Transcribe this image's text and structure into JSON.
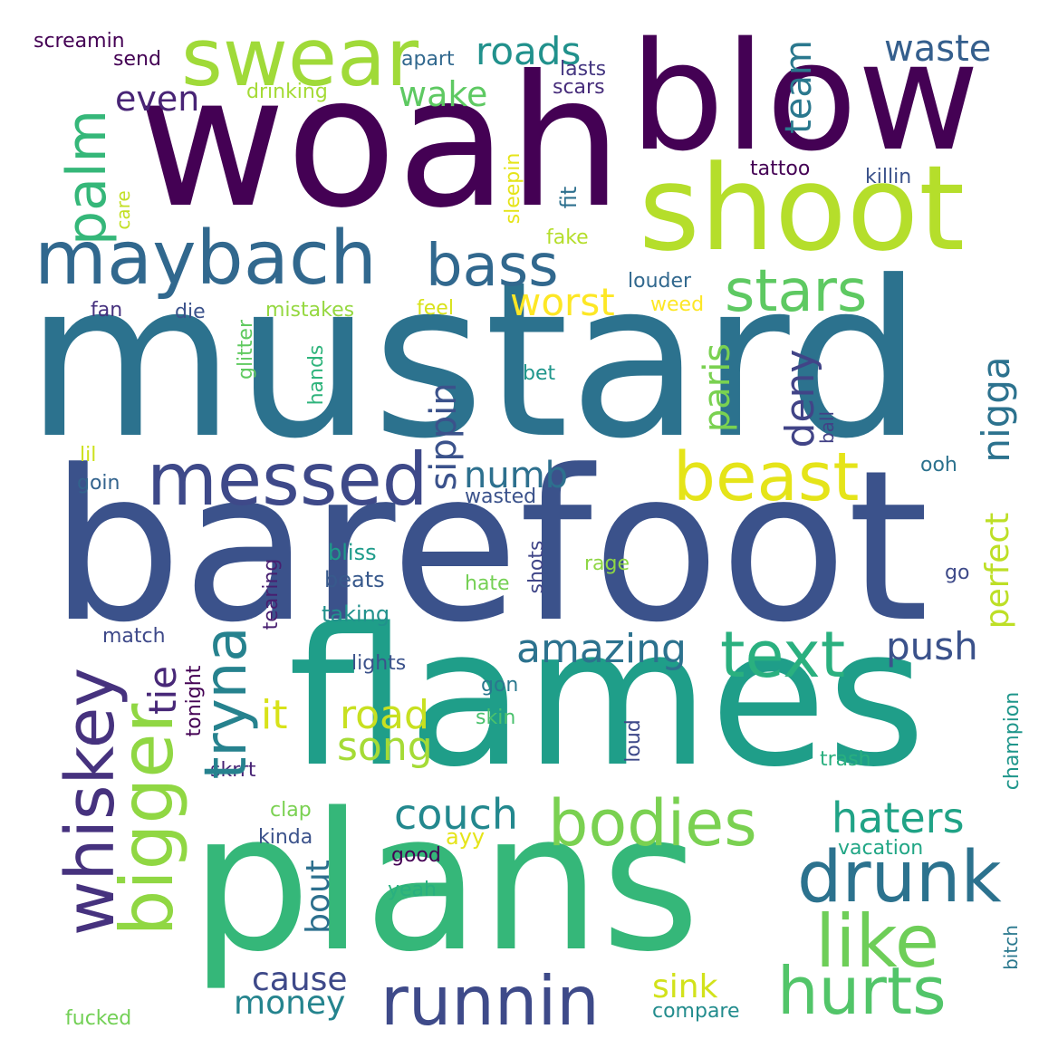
{
  "words": [
    {
      "text": "mustard",
      "color": "#2c728e"
    },
    {
      "text": "barefoot",
      "color": "#3b528b"
    },
    {
      "text": "flames",
      "color": "#1f9e89"
    },
    {
      "text": "plans",
      "color": "#35b779"
    },
    {
      "text": "woah",
      "color": "#440154"
    },
    {
      "text": "blow",
      "color": "#440154"
    },
    {
      "text": "shoot",
      "color": "#b5de2b"
    },
    {
      "text": "swear",
      "color": "#a0da39"
    },
    {
      "text": "maybach",
      "color": "#31688e"
    },
    {
      "text": "messed",
      "color": "#3e4989"
    },
    {
      "text": "whiskey",
      "color": "#46327e"
    },
    {
      "text": "bigger",
      "color": "#90d743"
    },
    {
      "text": "bass",
      "color": "#31688e"
    },
    {
      "text": "stars",
      "color": "#5ec962"
    },
    {
      "text": "beast",
      "color": "#e5e419"
    },
    {
      "text": "text",
      "color": "#2ab07f"
    },
    {
      "text": "bodies",
      "color": "#7ad151"
    },
    {
      "text": "drunk",
      "color": "#2c728e"
    },
    {
      "text": "like",
      "color": "#6ece58"
    },
    {
      "text": "hurts",
      "color": "#52c569"
    },
    {
      "text": "runnin",
      "color": "#3e4a89"
    },
    {
      "text": "tryna",
      "color": "#26828e"
    },
    {
      "text": "palm",
      "color": "#35b779"
    },
    {
      "text": "roads",
      "color": "#21918c"
    },
    {
      "text": "waste",
      "color": "#355f8d"
    },
    {
      "text": "team",
      "color": "#2a788e"
    },
    {
      "text": "even",
      "color": "#482475"
    },
    {
      "text": "wake",
      "color": "#5ec962"
    },
    {
      "text": "worst",
      "color": "#fde725"
    },
    {
      "text": "sippin",
      "color": "#3b528b"
    },
    {
      "text": "numb",
      "color": "#2d708e"
    },
    {
      "text": "paris",
      "color": "#7ad151"
    },
    {
      "text": "deny",
      "color": "#414487"
    },
    {
      "text": "nigga",
      "color": "#2c728e"
    },
    {
      "text": "perfect",
      "color": "#bddf26"
    },
    {
      "text": "amazing",
      "color": "#2c728e"
    },
    {
      "text": "push",
      "color": "#3b528b"
    },
    {
      "text": "tie",
      "color": "#482878"
    },
    {
      "text": "it",
      "color": "#d8e219"
    },
    {
      "text": "road",
      "color": "#c8e020"
    },
    {
      "text": "song",
      "color": "#a5db36"
    },
    {
      "text": "couch",
      "color": "#23888e"
    },
    {
      "text": "haters",
      "color": "#20a386"
    },
    {
      "text": "bout",
      "color": "#2d708e"
    },
    {
      "text": "cause",
      "color": "#3e4989"
    },
    {
      "text": "money",
      "color": "#25848e"
    },
    {
      "text": "sink",
      "color": "#d2e21b"
    },
    {
      "text": "screamin",
      "color": "#440154"
    },
    {
      "text": "send",
      "color": "#440154"
    },
    {
      "text": "apart",
      "color": "#31688e"
    },
    {
      "text": "lasts",
      "color": "#453781"
    },
    {
      "text": "scars",
      "color": "#472d7b"
    },
    {
      "text": "drinking",
      "color": "#a5db36"
    },
    {
      "text": "tattoo",
      "color": "#440154"
    },
    {
      "text": "killin",
      "color": "#3b528b"
    },
    {
      "text": "care",
      "color": "#c2df23"
    },
    {
      "text": "sleepin",
      "color": "#e5e419"
    },
    {
      "text": "fit",
      "color": "#2d708e"
    },
    {
      "text": "fake",
      "color": "#b5de2b"
    },
    {
      "text": "louder",
      "color": "#31688e"
    },
    {
      "text": "weed",
      "color": "#fde725"
    },
    {
      "text": "feel",
      "color": "#d8e219"
    },
    {
      "text": "mistakes",
      "color": "#95d840"
    },
    {
      "text": "fan",
      "color": "#46317e"
    },
    {
      "text": "die",
      "color": "#3b528b"
    },
    {
      "text": "glitter",
      "color": "#60ca60"
    },
    {
      "text": "hands",
      "color": "#2fb47c"
    },
    {
      "text": "bet",
      "color": "#1f968b"
    },
    {
      "text": "ball",
      "color": "#424186"
    },
    {
      "text": "lil",
      "color": "#cde11d"
    },
    {
      "text": "goin",
      "color": "#33638d"
    },
    {
      "text": "wasted",
      "color": "#3b528b"
    },
    {
      "text": "ooh",
      "color": "#2c728e"
    },
    {
      "text": "bliss",
      "color": "#1e9b8a"
    },
    {
      "text": "beats",
      "color": "#38598c"
    },
    {
      "text": "tearing",
      "color": "#481f70"
    },
    {
      "text": "shots",
      "color": "#404688"
    },
    {
      "text": "rage",
      "color": "#8ed645"
    },
    {
      "text": "hate",
      "color": "#75d054"
    },
    {
      "text": "go",
      "color": "#3e4a89"
    },
    {
      "text": "taking",
      "color": "#21918c"
    },
    {
      "text": "match",
      "color": "#3e4989"
    },
    {
      "text": "lights",
      "color": "#3b528b"
    },
    {
      "text": "tonight",
      "color": "#440154"
    },
    {
      "text": "gon",
      "color": "#2a788e"
    },
    {
      "text": "skin",
      "color": "#4ac16d"
    },
    {
      "text": "loud",
      "color": "#3e4989"
    },
    {
      "text": "champion",
      "color": "#1f968b"
    },
    {
      "text": "skrrt",
      "color": "#482475"
    },
    {
      "text": "trash",
      "color": "#29af7f"
    },
    {
      "text": "clap",
      "color": "#7ad151"
    },
    {
      "text": "kinda",
      "color": "#3b528b"
    },
    {
      "text": "good",
      "color": "#440154"
    },
    {
      "text": "ayy",
      "color": "#e5e419"
    },
    {
      "text": "vacation",
      "color": "#21a685"
    },
    {
      "text": "yeah",
      "color": "#2ab07f"
    },
    {
      "text": "bitch",
      "color": "#2a788e"
    },
    {
      "text": "fucked",
      "color": "#73d056"
    },
    {
      "text": "compare",
      "color": "#228c8d"
    }
  ]
}
